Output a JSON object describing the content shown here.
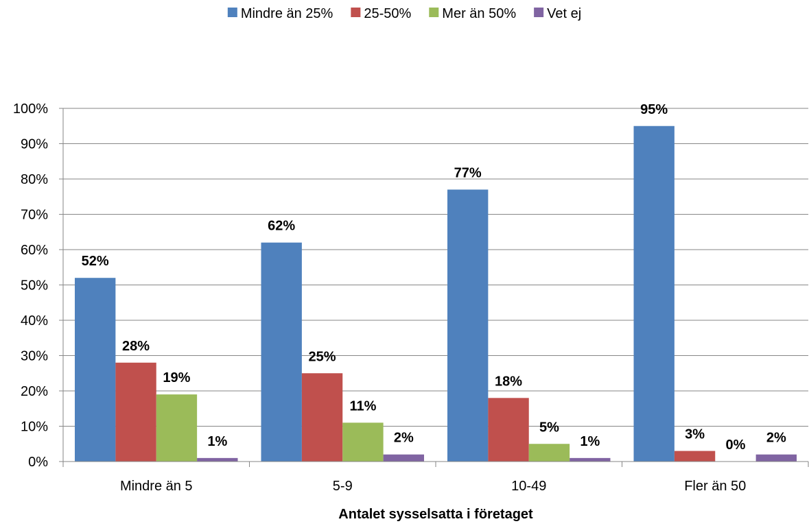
{
  "chart_data": {
    "type": "bar",
    "categories": [
      "Mindre än 5",
      "5-9",
      "10-49",
      "Fler än 50"
    ],
    "series": [
      {
        "name": "Mindre än 25%",
        "color": "#4F81BD",
        "values": [
          52,
          62,
          77,
          95
        ],
        "labels": [
          "52%",
          "62%",
          "77%",
          "95%"
        ]
      },
      {
        "name": "25-50%",
        "color": "#C0504D",
        "values": [
          28,
          25,
          18,
          3
        ],
        "labels": [
          "28%",
          "25%",
          "18%",
          "3%"
        ]
      },
      {
        "name": "Mer än 50%",
        "color": "#9BBB59",
        "values": [
          19,
          11,
          5,
          0
        ],
        "labels": [
          "19%",
          "11%",
          "5%",
          "0%"
        ]
      },
      {
        "name": "Vet ej",
        "color": "#8064A2",
        "values": [
          1,
          2,
          1,
          2
        ],
        "labels": [
          "1%",
          "2%",
          "1%",
          "2%"
        ]
      }
    ],
    "xlabel": "Antalet sysselsatta i företaget",
    "ylabel": "",
    "ylim": [
      0,
      100
    ],
    "yticks": [
      "0%",
      "10%",
      "20%",
      "30%",
      "40%",
      "50%",
      "60%",
      "70%",
      "80%",
      "90%",
      "100%"
    ],
    "grid": true,
    "gridColor": "#868686",
    "legend_position": "top"
  }
}
